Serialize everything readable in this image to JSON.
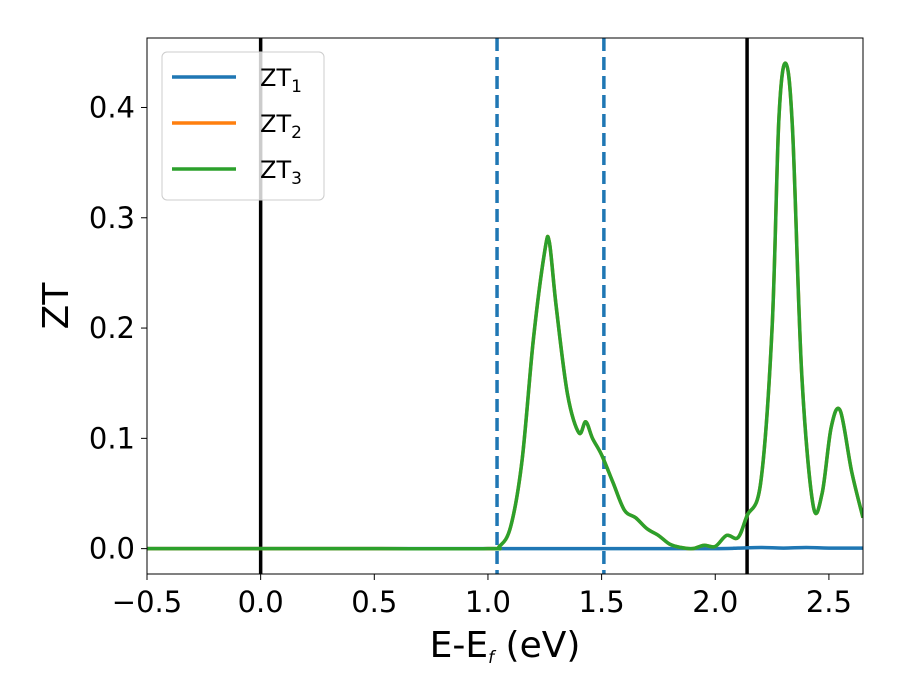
{
  "chart_data": {
    "type": "line",
    "title": "",
    "xlabel": "E-E",
    "xlabel_sub": "f",
    "xlabel_suffix": " (eV)",
    "ylabel": "ZT",
    "xlim": [
      -0.5,
      2.65
    ],
    "ylim": [
      -0.023,
      0.463
    ],
    "xticks": [
      -0.5,
      0.0,
      0.5,
      1.0,
      1.5,
      2.0,
      2.5
    ],
    "xtick_labels": [
      "−0.5",
      "0.0",
      "0.5",
      "1.0",
      "1.5",
      "2.0",
      "2.5"
    ],
    "yticks": [
      0.0,
      0.1,
      0.2,
      0.3,
      0.4
    ],
    "ytick_labels": [
      "0.0",
      "0.1",
      "0.2",
      "0.3",
      "0.4"
    ],
    "grid": false,
    "legend_position": "upper-left",
    "vlines": [
      {
        "x": 0.0,
        "color": "#000000",
        "style": "solid"
      },
      {
        "x": 2.14,
        "color": "#000000",
        "style": "solid"
      },
      {
        "x": 1.04,
        "color": "#1f77b4",
        "style": "dashed"
      },
      {
        "x": 1.51,
        "color": "#1f77b4",
        "style": "dashed"
      }
    ],
    "series": [
      {
        "name": "ZT",
        "sub": "1",
        "color": "#1f77b4",
        "x": [
          -0.5,
          0.0,
          0.5,
          1.0,
          1.5,
          2.0,
          2.1,
          2.2,
          2.3,
          2.4,
          2.5,
          2.65
        ],
        "y": [
          0,
          0,
          0,
          0,
          0,
          0,
          0.0005,
          0.001,
          0.0005,
          0.001,
          0.0005,
          0.0005
        ]
      },
      {
        "name": "ZT",
        "sub": "2",
        "color": "#ff7f0e",
        "x": [
          -0.5,
          0.0,
          0.5,
          1.0,
          1.05,
          1.1,
          1.15,
          1.2,
          1.25,
          1.27,
          1.3,
          1.35,
          1.4,
          1.43,
          1.46,
          1.5,
          1.55,
          1.6,
          1.65,
          1.7,
          1.75,
          1.8,
          1.85,
          1.9,
          1.95,
          2.0,
          2.05,
          2.1,
          2.14,
          2.2,
          2.25,
          2.28,
          2.31,
          2.34,
          2.38,
          2.43,
          2.47,
          2.51,
          2.55,
          2.6,
          2.65
        ],
        "y": [
          0,
          0,
          0,
          0,
          0.002,
          0.02,
          0.08,
          0.19,
          0.27,
          0.278,
          0.22,
          0.14,
          0.105,
          0.115,
          0.1,
          0.085,
          0.06,
          0.035,
          0.028,
          0.018,
          0.012,
          0.004,
          0.001,
          0.0,
          0.003,
          0.002,
          0.012,
          0.01,
          0.03,
          0.06,
          0.2,
          0.39,
          0.44,
          0.38,
          0.16,
          0.04,
          0.05,
          0.11,
          0.125,
          0.07,
          0.028
        ]
      },
      {
        "name": "ZT",
        "sub": "3",
        "color": "#2ca02c",
        "x": [
          -0.5,
          0.0,
          0.5,
          1.0,
          1.05,
          1.1,
          1.15,
          1.2,
          1.25,
          1.27,
          1.3,
          1.35,
          1.4,
          1.43,
          1.46,
          1.5,
          1.55,
          1.6,
          1.65,
          1.7,
          1.75,
          1.8,
          1.85,
          1.9,
          1.95,
          2.0,
          2.05,
          2.1,
          2.14,
          2.2,
          2.25,
          2.28,
          2.31,
          2.34,
          2.38,
          2.43,
          2.47,
          2.51,
          2.55,
          2.6,
          2.65
        ],
        "y": [
          0,
          0,
          0,
          0,
          0.002,
          0.02,
          0.08,
          0.19,
          0.27,
          0.278,
          0.22,
          0.14,
          0.105,
          0.115,
          0.1,
          0.085,
          0.06,
          0.035,
          0.028,
          0.018,
          0.012,
          0.004,
          0.001,
          0.0,
          0.003,
          0.002,
          0.012,
          0.01,
          0.03,
          0.06,
          0.2,
          0.39,
          0.44,
          0.38,
          0.16,
          0.04,
          0.05,
          0.11,
          0.125,
          0.07,
          0.028
        ]
      }
    ]
  }
}
